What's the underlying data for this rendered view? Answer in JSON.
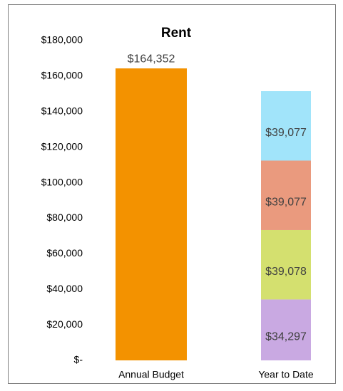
{
  "chart_data": {
    "type": "stacked_bar",
    "title": "Rent",
    "categories": [
      "Annual Budget",
      "Year to Date"
    ],
    "series": [
      {
        "color": "#f39200",
        "values": [
          164352,
          null
        ],
        "value_labels": [
          "$164,352",
          null
        ]
      },
      {
        "color": "#c9a9e2",
        "values": [
          null,
          34297
        ],
        "value_labels": [
          null,
          "$34,297"
        ]
      },
      {
        "color": "#d4e06f",
        "values": [
          null,
          39078
        ],
        "value_labels": [
          null,
          "$39,078"
        ]
      },
      {
        "color": "#ea9a7e",
        "values": [
          null,
          39077
        ],
        "value_labels": [
          null,
          "$39,077"
        ]
      },
      {
        "color": "#a1e4fa",
        "values": [
          null,
          39077
        ],
        "value_labels": [
          null,
          "$39,077"
        ]
      }
    ],
    "ylim": [
      0,
      180000
    ],
    "yticks": [
      {
        "value": 0,
        "label": "$-"
      },
      {
        "value": 20000,
        "label": "$20,000"
      },
      {
        "value": 40000,
        "label": "$40,000"
      },
      {
        "value": 60000,
        "label": "$60,000"
      },
      {
        "value": 80000,
        "label": "$80,000"
      },
      {
        "value": 100000,
        "label": "$100,000"
      },
      {
        "value": 120000,
        "label": "$120,000"
      },
      {
        "value": 140000,
        "label": "$140,000"
      },
      {
        "value": 160000,
        "label": "$160,000"
      },
      {
        "value": 180000,
        "label": "$180,000"
      }
    ],
    "grid": false
  }
}
